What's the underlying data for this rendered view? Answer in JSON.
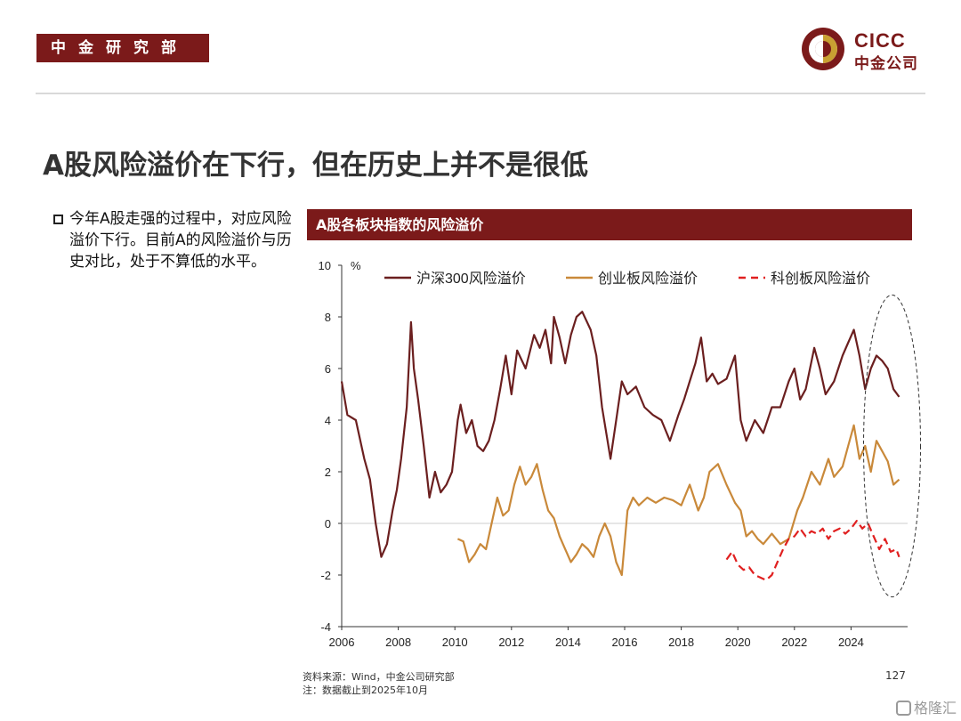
{
  "header": {
    "dept_label": "中金研究部",
    "logo_en": "CICC",
    "logo_cn": "中金公司",
    "brand_color": "#7b1a1a"
  },
  "slide": {
    "title": "A股风险溢价在下行，但在历史上并不是很低",
    "bullet": "今年A股走强的过程中，对应风险溢价下行。目前A的风险溢价与历史对比，处于不算低的水平。"
  },
  "chart_header": "A股各板块指数的风险溢价",
  "chart_data": {
    "type": "line",
    "title": "A股各板块指数的风险溢价",
    "ylabel": "%",
    "ylim": [
      -4,
      10
    ],
    "yticks": [
      -4,
      -2,
      0,
      2,
      4,
      6,
      8,
      10
    ],
    "xlim": [
      2006,
      2026
    ],
    "xticks": [
      2006,
      2008,
      2010,
      2012,
      2014,
      2016,
      2018,
      2020,
      2022,
      2024
    ],
    "legend_position": "top",
    "annotation": "dashed ellipse highlighting 2025 values",
    "series": [
      {
        "name": "沪深300风险溢价",
        "color": "#6b1f1f",
        "style": "solid",
        "x": [
          2006.0,
          2006.2,
          2006.5,
          2006.8,
          2007.0,
          2007.2,
          2007.4,
          2007.6,
          2007.8,
          2007.95,
          2008.1,
          2008.3,
          2008.45,
          2008.55,
          2008.7,
          2008.9,
          2009.1,
          2009.3,
          2009.5,
          2009.7,
          2009.9,
          2010.1,
          2010.2,
          2010.4,
          2010.6,
          2010.8,
          2011.0,
          2011.2,
          2011.4,
          2011.6,
          2011.8,
          2012.0,
          2012.2,
          2012.5,
          2012.8,
          2013.0,
          2013.2,
          2013.4,
          2013.5,
          2013.7,
          2013.9,
          2014.1,
          2014.3,
          2014.5,
          2014.8,
          2015.0,
          2015.2,
          2015.5,
          2015.7,
          2015.9,
          2016.1,
          2016.4,
          2016.7,
          2017.0,
          2017.3,
          2017.6,
          2017.9,
          2018.1,
          2018.3,
          2018.5,
          2018.7,
          2018.9,
          2019.1,
          2019.3,
          2019.6,
          2019.9,
          2020.1,
          2020.3,
          2020.6,
          2020.9,
          2021.2,
          2021.5,
          2021.8,
          2022.0,
          2022.2,
          2022.4,
          2022.7,
          2022.9,
          2023.1,
          2023.4,
          2023.7,
          2023.9,
          2024.1,
          2024.3,
          2024.5,
          2024.7,
          2024.9,
          2025.1,
          2025.3,
          2025.5,
          2025.7
        ],
        "y": [
          5.5,
          4.2,
          4.0,
          2.5,
          1.7,
          0.0,
          -1.3,
          -0.8,
          0.5,
          1.3,
          2.5,
          4.5,
          7.8,
          6.0,
          4.8,
          3.0,
          1.0,
          2.0,
          1.2,
          1.5,
          2.0,
          4.0,
          4.6,
          3.5,
          4.0,
          3.0,
          2.8,
          3.2,
          4.0,
          5.2,
          6.5,
          5.0,
          6.7,
          6.0,
          7.3,
          6.8,
          7.5,
          6.2,
          8.0,
          7.2,
          6.2,
          7.3,
          8.0,
          8.2,
          7.5,
          6.5,
          4.5,
          2.5,
          4.0,
          5.5,
          5.0,
          5.3,
          4.5,
          4.2,
          4.0,
          3.2,
          4.2,
          4.8,
          5.5,
          6.2,
          7.2,
          5.5,
          5.8,
          5.4,
          5.6,
          6.5,
          4.0,
          3.2,
          4.0,
          3.5,
          4.5,
          4.5,
          5.5,
          6.0,
          4.8,
          5.2,
          6.8,
          6.0,
          5.0,
          5.5,
          6.5,
          7.0,
          7.5,
          6.5,
          5.2,
          6.0,
          6.5,
          6.3,
          6.0,
          5.2,
          4.9
        ]
      },
      {
        "name": "创业板风险溢价",
        "color": "#c9893a",
        "style": "solid",
        "x": [
          2010.1,
          2010.3,
          2010.5,
          2010.7,
          2010.9,
          2011.1,
          2011.3,
          2011.5,
          2011.7,
          2011.9,
          2012.1,
          2012.3,
          2012.5,
          2012.7,
          2012.9,
          2013.1,
          2013.3,
          2013.5,
          2013.7,
          2013.9,
          2014.1,
          2014.3,
          2014.5,
          2014.7,
          2014.9,
          2015.1,
          2015.3,
          2015.5,
          2015.7,
          2015.9,
          2016.1,
          2016.3,
          2016.5,
          2016.8,
          2017.1,
          2017.4,
          2017.7,
          2018.0,
          2018.3,
          2018.6,
          2018.8,
          2019.0,
          2019.3,
          2019.6,
          2019.9,
          2020.1,
          2020.3,
          2020.5,
          2020.7,
          2020.9,
          2021.2,
          2021.5,
          2021.8,
          2022.1,
          2022.3,
          2022.6,
          2022.9,
          2023.2,
          2023.4,
          2023.7,
          2023.9,
          2024.1,
          2024.3,
          2024.5,
          2024.7,
          2024.9,
          2025.1,
          2025.3,
          2025.5,
          2025.7
        ],
        "y": [
          -0.6,
          -0.7,
          -1.5,
          -1.2,
          -0.8,
          -1.0,
          0.0,
          1.0,
          0.3,
          0.5,
          1.5,
          2.2,
          1.5,
          1.8,
          2.3,
          1.3,
          0.5,
          0.2,
          -0.5,
          -1.0,
          -1.5,
          -1.2,
          -0.8,
          -1.0,
          -1.3,
          -0.5,
          0.0,
          -0.5,
          -1.5,
          -2.0,
          0.5,
          1.0,
          0.7,
          1.0,
          0.8,
          1.0,
          0.9,
          0.7,
          1.5,
          0.5,
          1.0,
          2.0,
          2.3,
          1.5,
          0.8,
          0.5,
          -0.5,
          -0.3,
          -0.6,
          -0.8,
          -0.4,
          -0.8,
          -0.6,
          0.5,
          1.0,
          2.0,
          1.5,
          2.5,
          1.8,
          2.2,
          3.0,
          3.8,
          2.5,
          3.0,
          2.0,
          3.2,
          2.8,
          2.4,
          1.5,
          1.7
        ]
      },
      {
        "name": "科创板风险溢价",
        "color": "#e02020",
        "style": "dashed",
        "x": [
          2019.6,
          2019.8,
          2020.0,
          2020.2,
          2020.4,
          2020.6,
          2020.8,
          2021.0,
          2021.2,
          2021.4,
          2021.6,
          2021.8,
          2022.0,
          2022.2,
          2022.4,
          2022.6,
          2022.8,
          2023.0,
          2023.2,
          2023.4,
          2023.6,
          2023.8,
          2024.0,
          2024.2,
          2024.4,
          2024.6,
          2024.8,
          2025.0,
          2025.2,
          2025.4,
          2025.6,
          2025.7
        ],
        "y": [
          -1.4,
          -1.1,
          -1.6,
          -1.8,
          -1.7,
          -2.0,
          -2.1,
          -2.2,
          -2.0,
          -1.5,
          -1.0,
          -0.6,
          -0.5,
          -0.2,
          -0.5,
          -0.3,
          -0.4,
          -0.2,
          -0.6,
          -0.3,
          -0.2,
          -0.4,
          -0.2,
          0.1,
          -0.2,
          0.0,
          -0.5,
          -1.0,
          -0.6,
          -1.1,
          -1.0,
          -1.3
        ]
      }
    ]
  },
  "footnotes": {
    "source": "资料来源：Wind，中金公司研究部",
    "note": "注：数据截止到2025年10月"
  },
  "page_number": "127",
  "watermark": "格隆汇"
}
